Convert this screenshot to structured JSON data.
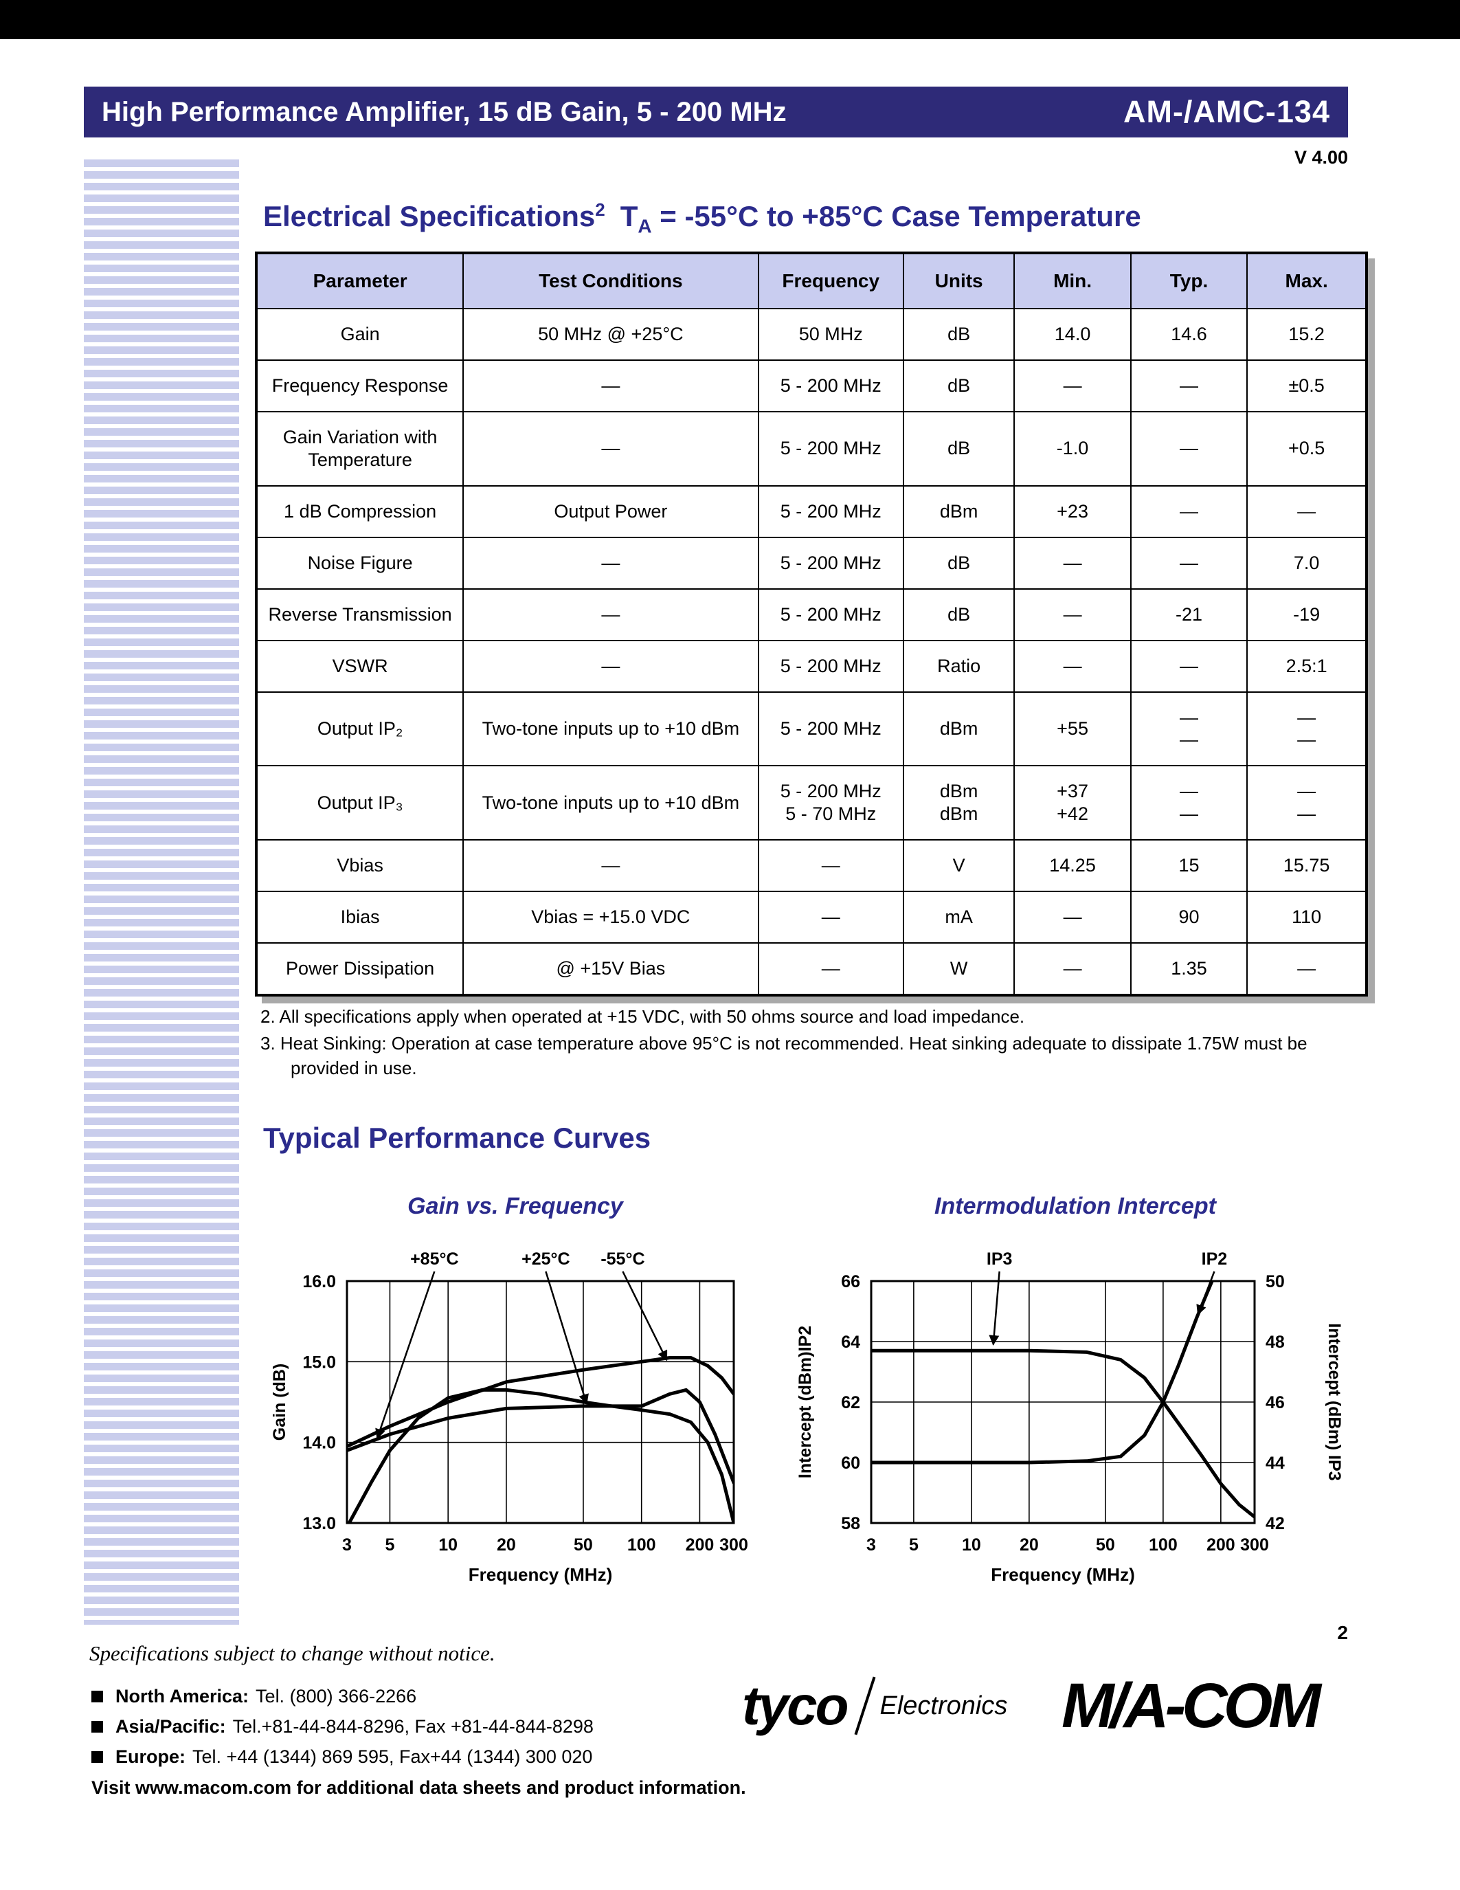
{
  "page": {
    "version": "V 4.00"
  },
  "colors": {
    "header_bar": "#2e2a78",
    "heading_text": "#2b2b8c",
    "stripe": "#c9cdec",
    "table_header_bg": "#c9cdf0",
    "top_bar": "#000000"
  },
  "header": {
    "title": "High Performance Amplifier, 15 dB Gain, 5 - 200 MHz",
    "part_number": "AM-/AMC-134"
  },
  "spec_section": {
    "heading_main": "Electrical Specifications",
    "heading_sup": "2",
    "heading_t": "T",
    "heading_sub": "A",
    "heading_rest": " = -55°C to +85°C Case Temperature",
    "table": {
      "columns": [
        "Parameter",
        "Test Conditions",
        "Frequency",
        "Units",
        "Min.",
        "Typ.",
        "Max."
      ],
      "rows": [
        [
          "Gain",
          "50 MHz @ +25°C",
          "50 MHz",
          "dB",
          "14.0",
          "14.6",
          "15.2"
        ],
        [
          "Frequency Response",
          "—",
          "5 - 200 MHz",
          "dB",
          "—",
          "—",
          "±0.5"
        ],
        [
          "Gain Variation with\nTemperature",
          "—",
          "5 - 200 MHz",
          "dB",
          "-1.0",
          "—",
          "+0.5"
        ],
        [
          "1 dB Compression",
          "Output Power",
          "5 - 200 MHz",
          "dBm",
          "+23",
          "—",
          "—"
        ],
        [
          "Noise Figure",
          "—",
          "5 - 200 MHz",
          "dB",
          "—",
          "—",
          "7.0"
        ],
        [
          "Reverse Transmission",
          "—",
          "5 - 200 MHz",
          "dB",
          "—",
          "-21",
          "-19"
        ],
        [
          "VSWR",
          "—",
          "5 - 200 MHz",
          "Ratio",
          "—",
          "—",
          "2.5:1"
        ],
        [
          "Output IP₂",
          "Two-tone inputs up to +10 dBm",
          "5 - 200 MHz",
          "dBm",
          "+55",
          "—\n—",
          "—\n—"
        ],
        [
          "Output IP₃",
          "Two-tone inputs up to +10 dBm",
          "5 - 200 MHz\n5 - 70 MHz",
          "dBm\ndBm",
          "+37\n+42",
          "—\n—",
          "—\n—"
        ],
        [
          "Vbias",
          "—",
          "—",
          "V",
          "14.25",
          "15",
          "15.75"
        ],
        [
          "Ibias",
          "Vbias = +15.0 VDC",
          "—",
          "mA",
          "—",
          "90",
          "110"
        ],
        [
          "Power Dissipation",
          "@ +15V Bias",
          "—",
          "W",
          "—",
          "1.35",
          "—"
        ]
      ]
    },
    "footnotes": [
      "2.  All specifications apply when operated at +15 VDC, with 50 ohms source and load impedance.",
      "3.  Heat Sinking: Operation at case temperature above 95°C is not recommended. Heat sinking adequate to dissipate 1.75W must be provided in use."
    ]
  },
  "curves_section": {
    "heading": "Typical Performance Curves"
  },
  "chart_data": [
    {
      "type": "line",
      "title": "Gain vs. Frequency",
      "xlabel": "Frequency (MHz)",
      "ylabel": "Gain (dB)",
      "xscale": "log",
      "xlim": [
        3,
        300
      ],
      "xticks": [
        3,
        5,
        10,
        20,
        50,
        100,
        200,
        300
      ],
      "ylim": [
        13.0,
        16.0
      ],
      "ytick_vals": [
        13.0,
        14.0,
        15.0,
        16.0
      ],
      "ytick_labels": [
        "13.0",
        "14.0",
        "15.0",
        "16.0"
      ],
      "grid": true,
      "legend_position": "annotations-above-plot",
      "series": [
        {
          "name": "+85°C",
          "x": [
            3,
            4,
            5,
            7,
            10,
            15,
            20,
            30,
            50,
            70,
            100,
            140,
            180,
            220,
            260,
            300
          ],
          "y": [
            12.95,
            13.5,
            13.9,
            14.3,
            14.55,
            14.65,
            14.65,
            14.6,
            14.5,
            14.45,
            14.4,
            14.35,
            14.25,
            14.0,
            13.6,
            13.0
          ]
        },
        {
          "name": "+25°C",
          "x": [
            3,
            5,
            10,
            20,
            50,
            100,
            140,
            170,
            200,
            240,
            300
          ],
          "y": [
            13.9,
            14.1,
            14.3,
            14.42,
            14.45,
            14.45,
            14.6,
            14.65,
            14.5,
            14.1,
            13.5
          ]
        },
        {
          "name": "-55°C",
          "x": [
            3,
            5,
            10,
            20,
            50,
            100,
            140,
            180,
            220,
            260,
            300
          ],
          "y": [
            13.95,
            14.2,
            14.5,
            14.75,
            14.9,
            15.0,
            15.05,
            15.05,
            14.95,
            14.8,
            14.6
          ]
        }
      ],
      "annotations": [
        {
          "label": "+85°C",
          "label_x": 8.5,
          "tip": [
            4.3,
            14.05
          ]
        },
        {
          "label": "+25°C",
          "label_x": 32,
          "tip": [
            52,
            14.48
          ]
        },
        {
          "label": "-55°C",
          "label_x": 80,
          "tip": [
            135,
            15.02
          ]
        }
      ]
    },
    {
      "type": "line",
      "title": "Intermodulation Intercept",
      "xlabel": "Frequency (MHz)",
      "ylabel_left": "Intercept (dBm)IP2",
      "ylabel_right": "Intercept (dBm) IP3",
      "xscale": "log",
      "xlim": [
        3,
        300
      ],
      "xticks": [
        3,
        5,
        10,
        20,
        50,
        100,
        200,
        300
      ],
      "ylim_left": [
        58,
        66
      ],
      "ytick_vals_left": [
        58,
        60,
        62,
        64,
        66
      ],
      "ytick_labels_left": [
        "58",
        "60",
        "62",
        "64",
        "66"
      ],
      "ylim_right": [
        42,
        50
      ],
      "ytick_vals_right": [
        42,
        44,
        46,
        48,
        50
      ],
      "ytick_labels_right": [
        "42",
        "44",
        "46",
        "48",
        "50"
      ],
      "grid": true,
      "legend_position": "annotations-above-plot",
      "series": [
        {
          "name": "IP2",
          "axis": "left",
          "x": [
            3,
            5,
            10,
            20,
            40,
            60,
            80,
            100,
            120,
            150,
            180,
            210,
            240
          ],
          "y": [
            60.0,
            60.0,
            60.0,
            60.0,
            60.05,
            60.2,
            60.9,
            62.0,
            63.2,
            64.8,
            66.0,
            67.0,
            67.8
          ]
        },
        {
          "name": "IP3",
          "axis": "right",
          "x": [
            3,
            5,
            10,
            20,
            40,
            60,
            80,
            100,
            130,
            160,
            200,
            250,
            300
          ],
          "y": [
            47.7,
            47.7,
            47.7,
            47.7,
            47.65,
            47.4,
            46.8,
            46.0,
            45.0,
            44.2,
            43.3,
            42.6,
            42.2
          ]
        }
      ],
      "annotations": [
        {
          "label": "IP3",
          "label_x": 14,
          "tip": [
            13,
            63.9
          ]
        },
        {
          "label": "IP2",
          "label_x": 185,
          "tip": [
            152,
            64.9
          ]
        }
      ]
    }
  ],
  "footer": {
    "notice": "Specifications subject to change without notice.",
    "page_number": "2",
    "contacts": [
      {
        "region": "North America:",
        "info": "Tel. (800) 366-2266"
      },
      {
        "region": "Asia/Pacific:",
        "info": "Tel.+81-44-844-8296,  Fax +81-44-844-8298"
      },
      {
        "region": "Europe:",
        "info": "Tel. +44 (1344) 869 595,  Fax+44 (1344) 300 020"
      }
    ],
    "visit": "Visit www.macom.com for additional data sheets and product information.",
    "logos": {
      "tyco": "tyco",
      "tyco_sub": "Electronics",
      "macom": "M/A-COM"
    }
  }
}
